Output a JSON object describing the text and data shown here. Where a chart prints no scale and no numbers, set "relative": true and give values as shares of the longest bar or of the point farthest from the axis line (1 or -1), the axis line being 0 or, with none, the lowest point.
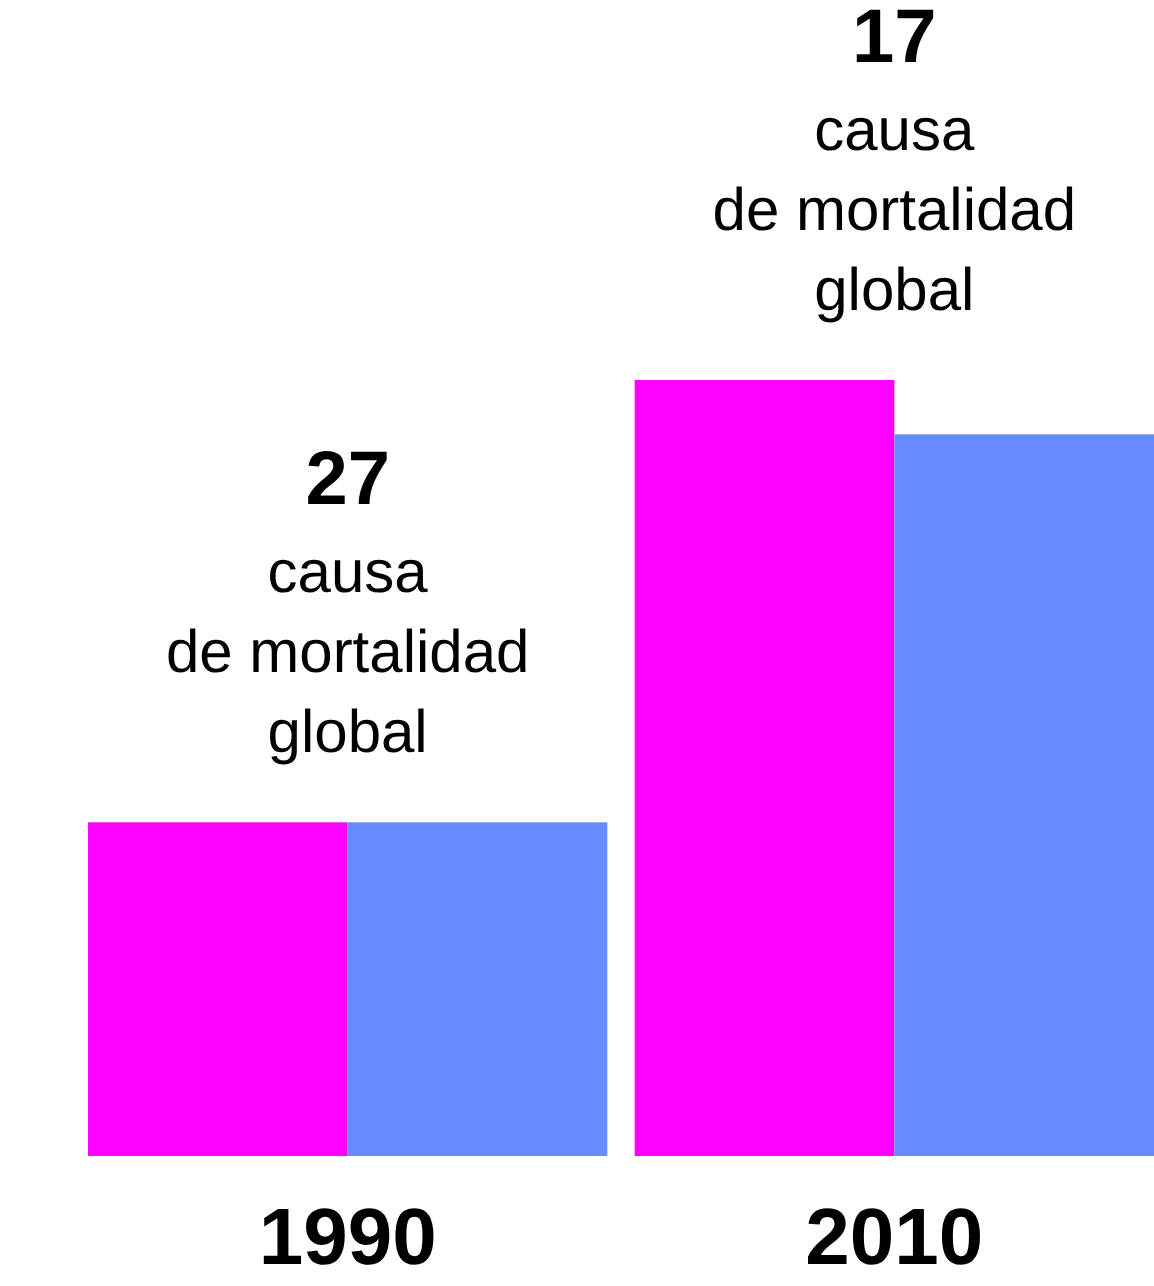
{
  "chart_data": {
    "type": "bar",
    "relative": true,
    "categories": [
      "1990",
      "2010"
    ],
    "series": [
      {
        "color": "#ff00ff",
        "values": [
          0.43,
          1
        ]
      },
      {
        "color": "#668cff",
        "values": [
          0.43,
          0.93
        ]
      }
    ],
    "annotations": [
      "27\ncausa\nde mortalidad\nglobal",
      "17\ncausa\nde mortalidad\nglobal"
    ]
  }
}
